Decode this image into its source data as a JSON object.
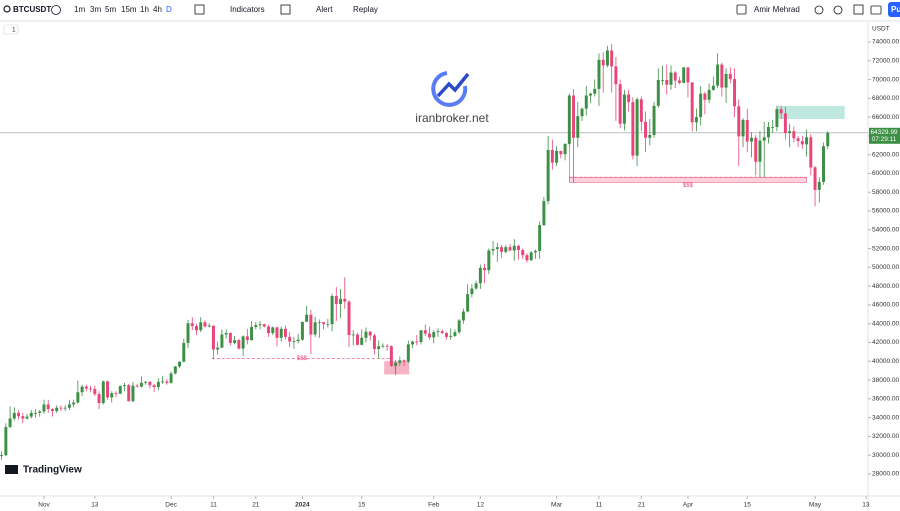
{
  "toolbar": {
    "symbol": "BTCUSDT",
    "intervals": [
      "1m",
      "3m",
      "5m",
      "15m",
      "1h",
      "4h",
      "D"
    ],
    "indicators": "Indicators",
    "alert": "Alert",
    "replay": "Replay",
    "user": "Amir Mehrad",
    "publish": "Pu"
  },
  "legend_toggle": "1",
  "watermark": "iranbroker.net",
  "brand": "TradingView",
  "chart_data": {
    "type": "candlestick",
    "currency": "USDT",
    "up_color": "#3d8f46",
    "down_color": "#e8457a",
    "last_price": 64329.99,
    "countdown": "07:29:11",
    "ylim": [
      25650,
      76130
    ],
    "yticks": [
      {
        "value": 28000,
        "label": "28000.00"
      },
      {
        "value": 30000,
        "label": "30000.00"
      },
      {
        "value": 32000,
        "label": "32000.00"
      },
      {
        "value": 34000,
        "label": "34000.00"
      },
      {
        "value": 36000,
        "label": "36000.00"
      },
      {
        "value": 38000,
        "label": "38000.00"
      },
      {
        "value": 40000,
        "label": "40000.00"
      },
      {
        "value": 42000,
        "label": "42000.00"
      },
      {
        "value": 44000,
        "label": "44000.00"
      },
      {
        "value": 46000,
        "label": "46000.00"
      },
      {
        "value": 48000,
        "label": "48000.00"
      },
      {
        "value": 50000,
        "label": "50000.00"
      },
      {
        "value": 52000,
        "label": "52000.00"
      },
      {
        "value": 54000,
        "label": "54000.00"
      },
      {
        "value": 56000,
        "label": "56000.00"
      },
      {
        "value": 58000,
        "label": "58000.00"
      },
      {
        "value": 60000,
        "label": "60000.00"
      },
      {
        "value": 62000,
        "label": "62000.00"
      },
      {
        "value": 64000,
        "label": "64000.00"
      },
      {
        "value": 66000,
        "label": "66000.00"
      },
      {
        "value": 68000,
        "label": "68000.00"
      },
      {
        "value": 70000,
        "label": "70000.00"
      },
      {
        "value": 72000,
        "label": "72000.00"
      },
      {
        "value": 74000,
        "label": "74000.00"
      }
    ],
    "xlim": [
      -0.38,
      204.5
    ],
    "xticks": [
      {
        "value": 10,
        "label": "Nov"
      },
      {
        "value": 22,
        "label": "13"
      },
      {
        "value": 40,
        "label": "Dec"
      },
      {
        "value": 50,
        "label": "11"
      },
      {
        "value": 60,
        "label": "21"
      },
      {
        "value": 71,
        "label": "2024"
      },
      {
        "value": 85,
        "label": "15"
      },
      {
        "value": 102,
        "label": "Feb"
      },
      {
        "value": 113,
        "label": "12"
      },
      {
        "value": 131,
        "label": "Mar"
      },
      {
        "value": 141,
        "label": "11"
      },
      {
        "value": 151,
        "label": "21"
      },
      {
        "value": 162,
        "label": "Apr"
      },
      {
        "value": 176,
        "label": "15"
      },
      {
        "value": 192,
        "label": "May"
      },
      {
        "value": 204,
        "label": "13"
      }
    ],
    "annotations": [
      {
        "kind": "zone",
        "x": [
          183,
          199
        ],
        "y": [
          65800,
          67200
        ],
        "color": "#bfe9e0"
      },
      {
        "kind": "zone",
        "x": [
          134,
          190
        ],
        "y": [
          59050,
          59600
        ],
        "color": "#f9d2dc",
        "border": "#e8457a",
        "label": "$$$"
      },
      {
        "kind": "zone",
        "x": [
          90.3,
          96.2
        ],
        "y": [
          38600,
          40000
        ],
        "color": "#f6b3c5"
      },
      {
        "kind": "line",
        "x": [
          49.6,
          92.2
        ],
        "y": 40300,
        "color": "#e8457a",
        "label": "$$$"
      }
    ],
    "candles": [
      [
        29900,
        30400,
        29500,
        30000
      ],
      [
        30000,
        33400,
        29900,
        33000
      ],
      [
        33000,
        35200,
        32900,
        33900
      ],
      [
        33900,
        35100,
        33700,
        34500
      ],
      [
        34500,
        34800,
        33800,
        34150
      ],
      [
        34150,
        34500,
        33400,
        33900
      ],
      [
        33900,
        34400,
        33800,
        34100
      ],
      [
        34100,
        34800,
        33900,
        34500
      ],
      [
        34500,
        34900,
        34000,
        34500
      ],
      [
        34500,
        34800,
        34100,
        34650
      ],
      [
        34650,
        35900,
        34400,
        35400
      ],
      [
        35400,
        35900,
        34500,
        34900
      ],
      [
        34900,
        35000,
        34100,
        34700
      ],
      [
        34700,
        35300,
        34500,
        35050
      ],
      [
        35050,
        35300,
        34700,
        35000
      ],
      [
        35000,
        35300,
        34700,
        35050
      ],
      [
        35050,
        35900,
        34800,
        35400
      ],
      [
        35400,
        35900,
        35100,
        35600
      ],
      [
        35600,
        37950,
        35500,
        36700
      ],
      [
        36700,
        37500,
        36300,
        37300
      ],
      [
        37300,
        37500,
        36800,
        37100
      ],
      [
        37100,
        37400,
        36700,
        37050
      ],
      [
        37050,
        37400,
        36300,
        36500
      ],
      [
        36500,
        36800,
        34900,
        35550
      ],
      [
        35550,
        37950,
        35400,
        37850
      ],
      [
        37850,
        37950,
        35900,
        36150
      ],
      [
        36150,
        36800,
        35600,
        36600
      ],
      [
        36600,
        36800,
        36200,
        36550
      ],
      [
        36550,
        37450,
        36500,
        37350
      ],
      [
        37350,
        37700,
        36800,
        37450
      ],
      [
        37450,
        37600,
        35700,
        35750
      ],
      [
        35750,
        37800,
        35650,
        37400
      ],
      [
        37400,
        37600,
        37200,
        37300
      ],
      [
        37300,
        38400,
        37200,
        37700
      ],
      [
        37700,
        37900,
        37500,
        37800
      ],
      [
        37800,
        37900,
        37100,
        37450
      ],
      [
        37450,
        37600,
        36700,
        37250
      ],
      [
        37250,
        38200,
        36900,
        37800
      ],
      [
        37800,
        38400,
        37600,
        37850
      ],
      [
        37850,
        38100,
        37500,
        37700
      ],
      [
        37700,
        38900,
        37600,
        38700
      ],
      [
        38700,
        39500,
        38600,
        39450
      ],
      [
        39450,
        40000,
        39300,
        39950
      ],
      [
        39950,
        42400,
        39900,
        41950
      ],
      [
        41950,
        44400,
        41400,
        44050
      ],
      [
        44050,
        44700,
        43300,
        43750
      ],
      [
        43750,
        44000,
        42800,
        43300
      ],
      [
        43300,
        44700,
        43100,
        44150
      ],
      [
        44150,
        44350,
        43600,
        43700
      ],
      [
        43700,
        44050,
        43600,
        43800
      ],
      [
        43800,
        43800,
        40200,
        41250
      ],
      [
        41250,
        42100,
        40700,
        41450
      ],
      [
        41450,
        43400,
        41400,
        42850
      ],
      [
        42850,
        43400,
        42400,
        43000
      ],
      [
        43000,
        43100,
        41700,
        41950
      ],
      [
        41950,
        42700,
        41800,
        42250
      ],
      [
        42250,
        42400,
        41250,
        41350
      ],
      [
        41350,
        42750,
        40550,
        42650
      ],
      [
        42650,
        43450,
        41800,
        42250
      ],
      [
        42250,
        44250,
        42200,
        43650
      ],
      [
        43650,
        44200,
        43400,
        43850
      ],
      [
        43850,
        44300,
        43400,
        43950
      ],
      [
        43950,
        44000,
        43600,
        43700
      ],
      [
        43700,
        43900,
        42600,
        43000
      ],
      [
        43000,
        43700,
        42800,
        43600
      ],
      [
        43600,
        43700,
        41600,
        42500
      ],
      [
        42500,
        43700,
        42100,
        43450
      ],
      [
        43450,
        43800,
        42300,
        42600
      ],
      [
        42600,
        43100,
        41500,
        42100
      ],
      [
        42100,
        42600,
        41300,
        42150
      ],
      [
        42150,
        42900,
        41900,
        42300
      ],
      [
        42300,
        44200,
        42200,
        44200
      ],
      [
        44200,
        45900,
        44200,
        44950
      ],
      [
        44950,
        45500,
        40750,
        42850
      ],
      [
        42850,
        44750,
        42600,
        44150
      ],
      [
        44150,
        44450,
        42500,
        44150
      ],
      [
        44150,
        44200,
        43400,
        43950
      ],
      [
        43950,
        44500,
        43600,
        43950
      ],
      [
        43950,
        47200,
        43200,
        46950
      ],
      [
        46950,
        47900,
        44300,
        46100
      ],
      [
        46100,
        47700,
        44600,
        46650
      ],
      [
        46650,
        48950,
        45600,
        46350
      ],
      [
        46350,
        46500,
        41500,
        42800
      ],
      [
        42800,
        43300,
        41700,
        42850
      ],
      [
        42850,
        43000,
        41700,
        41750
      ],
      [
        41750,
        43400,
        41700,
        42500
      ],
      [
        42500,
        43600,
        42000,
        43150
      ],
      [
        43150,
        43200,
        42200,
        42750
      ],
      [
        42750,
        42900,
        40700,
        41300
      ],
      [
        41300,
        42200,
        40300,
        41600
      ],
      [
        41600,
        41900,
        41400,
        41650
      ],
      [
        41650,
        41850,
        41100,
        41600
      ],
      [
        41600,
        41700,
        39400,
        39500
      ],
      [
        39500,
        40100,
        38550,
        39850
      ],
      [
        39850,
        40500,
        39500,
        40100
      ],
      [
        40100,
        40200,
        39500,
        39950
      ],
      [
        39950,
        42200,
        39800,
        41800
      ],
      [
        41800,
        42200,
        41400,
        42100
      ],
      [
        42100,
        42800,
        41700,
        42050
      ],
      [
        42050,
        43300,
        41800,
        43300
      ],
      [
        43300,
        43900,
        42700,
        42950
      ],
      [
        42950,
        43700,
        42300,
        42550
      ],
      [
        42550,
        43300,
        41900,
        43100
      ],
      [
        43100,
        43500,
        42600,
        43200
      ],
      [
        43200,
        43400,
        42900,
        43000
      ],
      [
        43000,
        43100,
        42300,
        42600
      ],
      [
        42600,
        43500,
        42300,
        42700
      ],
      [
        42700,
        43400,
        42600,
        43100
      ],
      [
        43100,
        44500,
        42900,
        44350
      ],
      [
        44350,
        45600,
        44000,
        45300
      ],
      [
        45300,
        48200,
        45200,
        47150
      ],
      [
        47150,
        48200,
        46800,
        47750
      ],
      [
        47750,
        48600,
        47600,
        48300
      ],
      [
        48300,
        50300,
        47700,
        49950
      ],
      [
        49950,
        50400,
        48300,
        49700
      ],
      [
        49700,
        52000,
        49300,
        51800
      ],
      [
        51800,
        52800,
        51300,
        51950
      ],
      [
        51950,
        52600,
        50600,
        52150
      ],
      [
        52150,
        52400,
        51000,
        51650
      ],
      [
        51650,
        52400,
        51500,
        52150
      ],
      [
        52150,
        52500,
        51700,
        51800
      ],
      [
        51800,
        53000,
        50700,
        52300
      ],
      [
        52300,
        52400,
        50800,
        51850
      ],
      [
        51850,
        52000,
        50900,
        51300
      ],
      [
        51300,
        51500,
        50500,
        50750
      ],
      [
        50750,
        51700,
        50700,
        51600
      ],
      [
        51600,
        51900,
        50900,
        51750
      ],
      [
        51750,
        54900,
        50900,
        54500
      ],
      [
        54500,
        57500,
        54400,
        57050
      ],
      [
        57050,
        64000,
        56700,
        62500
      ],
      [
        62500,
        63600,
        60400,
        61150
      ],
      [
        61150,
        62900,
        60800,
        62400
      ],
      [
        62400,
        62400,
        61600,
        62050
      ],
      [
        62050,
        63200,
        61400,
        63150
      ],
      [
        63150,
        68500,
        62900,
        68300
      ],
      [
        68300,
        69000,
        59000,
        63800
      ],
      [
        63800,
        67600,
        62800,
        66100
      ],
      [
        66100,
        67000,
        65600,
        66900
      ],
      [
        66900,
        69300,
        66200,
        68300
      ],
      [
        68300,
        68600,
        67500,
        68500
      ],
      [
        68500,
        70000,
        68200,
        69000
      ],
      [
        69000,
        72800,
        67200,
        72100
      ],
      [
        72100,
        72900,
        68600,
        71500
      ],
      [
        71500,
        73600,
        71300,
        73100
      ],
      [
        73100,
        73800,
        68600,
        71400
      ],
      [
        71400,
        72400,
        65600,
        69500
      ],
      [
        69500,
        70000,
        64800,
        65300
      ],
      [
        65300,
        68900,
        64600,
        68400
      ],
      [
        68400,
        68900,
        66600,
        67600
      ],
      [
        67600,
        68100,
        61500,
        61900
      ],
      [
        61900,
        68100,
        60800,
        67900
      ],
      [
        67900,
        68200,
        64500,
        65500
      ],
      [
        65500,
        66600,
        62300,
        63800
      ],
      [
        63800,
        65800,
        63000,
        64100
      ],
      [
        64100,
        67600,
        63800,
        67200
      ],
      [
        67200,
        71200,
        67000,
        69950
      ],
      [
        69950,
        71500,
        69400,
        69950
      ],
      [
        69950,
        71600,
        68400,
        69450
      ],
      [
        69450,
        71500,
        68900,
        70750
      ],
      [
        70750,
        70900,
        69100,
        69900
      ],
      [
        69900,
        70300,
        69500,
        69650
      ],
      [
        69650,
        71300,
        69600,
        71300
      ],
      [
        71300,
        71300,
        68100,
        69700
      ],
      [
        69700,
        69700,
        64500,
        65450
      ],
      [
        65450,
        66900,
        64500,
        66000
      ],
      [
        66000,
        69300,
        65100,
        68500
      ],
      [
        68500,
        68700,
        66300,
        67850
      ],
      [
        67850,
        69600,
        67500,
        68900
      ],
      [
        68900,
        70300,
        68800,
        69350
      ],
      [
        69350,
        72800,
        69100,
        71600
      ],
      [
        71600,
        71800,
        68200,
        69150
      ],
      [
        69150,
        71200,
        67500,
        70600
      ],
      [
        70600,
        71300,
        69600,
        70050
      ],
      [
        70050,
        71200,
        66000,
        67150
      ],
      [
        67150,
        67900,
        60800,
        63950
      ],
      [
        63950,
        65900,
        62800,
        65700
      ],
      [
        65700,
        66900,
        62300,
        63400
      ],
      [
        63400,
        64400,
        61700,
        63800
      ],
      [
        63800,
        64100,
        59800,
        61250
      ],
      [
        61250,
        64500,
        59600,
        63500
      ],
      [
        63500,
        65500,
        59600,
        63850
      ],
      [
        63850,
        65500,
        63200,
        64950
      ],
      [
        64950,
        65700,
        64300,
        64950
      ],
      [
        64950,
        67200,
        64500,
        66850
      ],
      [
        66850,
        67200,
        65800,
        66400
      ],
      [
        66400,
        67100,
        63600,
        64300
      ],
      [
        64300,
        65300,
        62800,
        64500
      ],
      [
        64500,
        65000,
        63300,
        63750
      ],
      [
        63750,
        64000,
        62800,
        63450
      ],
      [
        63450,
        64000,
        62600,
        63100
      ],
      [
        63100,
        64700,
        61800,
        63850
      ],
      [
        63850,
        64200,
        59800,
        60650
      ],
      [
        60650,
        60800,
        56500,
        58250
      ],
      [
        58250,
        59600,
        56900,
        59100
      ],
      [
        59100,
        63300,
        58800,
        62900
      ],
      [
        62900,
        64500,
        62600,
        64329.99
      ]
    ]
  }
}
